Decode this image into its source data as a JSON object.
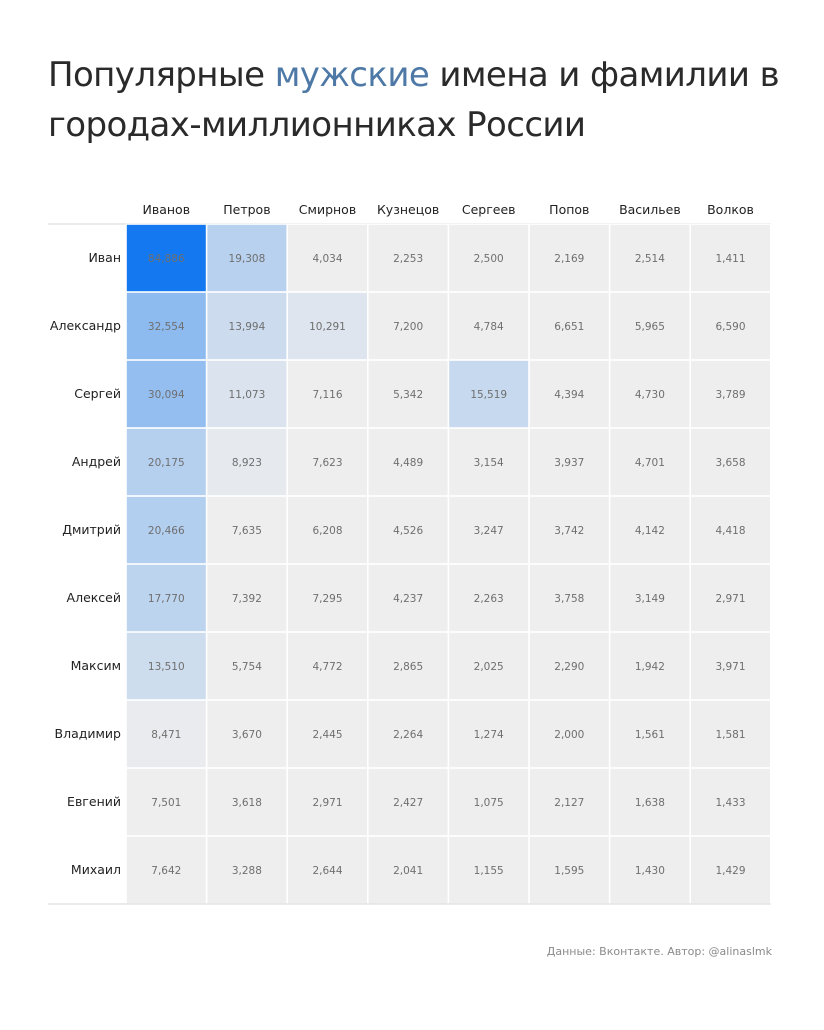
{
  "title": {
    "part1": "Популярные ",
    "accent": "мужские",
    "part2": " имена и фамилии в городах-миллионниках России"
  },
  "colors": {
    "accent": "#4e79a7",
    "cell_base": "#eeeeee",
    "cell_max": "#1479f0"
  },
  "chart_data": {
    "type": "heatmap",
    "x_categories": [
      "Иванов",
      "Петров",
      "Смирнов",
      "Кузнецов",
      "Сергеев",
      "Попов",
      "Васильев",
      "Волков"
    ],
    "y_categories": [
      "Иван",
      "Александр",
      "Сергей",
      "Андрей",
      "Дмитрий",
      "Алексей",
      "Максим",
      "Владимир",
      "Евгений",
      "Михаил"
    ],
    "values": [
      [
        84886,
        19308,
        4034,
        2253,
        2500,
        2169,
        2514,
        1411
      ],
      [
        32554,
        13994,
        10291,
        7200,
        4784,
        6651,
        5965,
        6590
      ],
      [
        30094,
        11073,
        7116,
        5342,
        15519,
        4394,
        4730,
        3789
      ],
      [
        20175,
        8923,
        7623,
        4489,
        3154,
        3937,
        4701,
        3658
      ],
      [
        20466,
        7635,
        6208,
        4526,
        3247,
        3742,
        4142,
        4418
      ],
      [
        17770,
        7392,
        7295,
        4237,
        2263,
        3758,
        3149,
        2971
      ],
      [
        13510,
        5754,
        4772,
        2865,
        2025,
        2290,
        1942,
        3971
      ],
      [
        8471,
        3670,
        2445,
        2264,
        1274,
        2000,
        1561,
        1581
      ],
      [
        7501,
        3618,
        2971,
        2427,
        1075,
        2127,
        1638,
        1433
      ],
      [
        7642,
        3288,
        2644,
        2041,
        1155,
        1595,
        1430,
        1429
      ]
    ],
    "labels": [
      [
        "84,886",
        "19,308",
        "4,034",
        "2,253",
        "2,500",
        "2,169",
        "2,514",
        "1,411"
      ],
      [
        "32,554",
        "13,994",
        "10,291",
        "7,200",
        "4,784",
        "6,651",
        "5,965",
        "6,590"
      ],
      [
        "30,094",
        "11,073",
        "7,116",
        "5,342",
        "15,519",
        "4,394",
        "4,730",
        "3,789"
      ],
      [
        "20,175",
        "8,923",
        "7,623",
        "4,489",
        "3,154",
        "3,937",
        "4,701",
        "3,658"
      ],
      [
        "20,466",
        "7,635",
        "6,208",
        "4,526",
        "3,247",
        "3,742",
        "4,142",
        "4,418"
      ],
      [
        "17,770",
        "7,392",
        "7,295",
        "4,237",
        "2,263",
        "3,758",
        "3,149",
        "2,971"
      ],
      [
        "13,510",
        "5,754",
        "4,772",
        "2,865",
        "2,025",
        "2,290",
        "1,942",
        "3,971"
      ],
      [
        "8,471",
        "3,670",
        "2,445",
        "2,264",
        "1,274",
        "2,000",
        "1,561",
        "1,581"
      ],
      [
        "7,501",
        "3,618",
        "2,971",
        "2,427",
        "1,075",
        "2,127",
        "1,638",
        "1,433"
      ],
      [
        "7,642",
        "3,288",
        "2,644",
        "2,041",
        "1,155",
        "1,595",
        "1,430",
        "1,429"
      ]
    ],
    "color_thresholds": [
      8000,
      80000
    ]
  },
  "source": "Данные: Вконтакте. Автор: @alinaslmk"
}
